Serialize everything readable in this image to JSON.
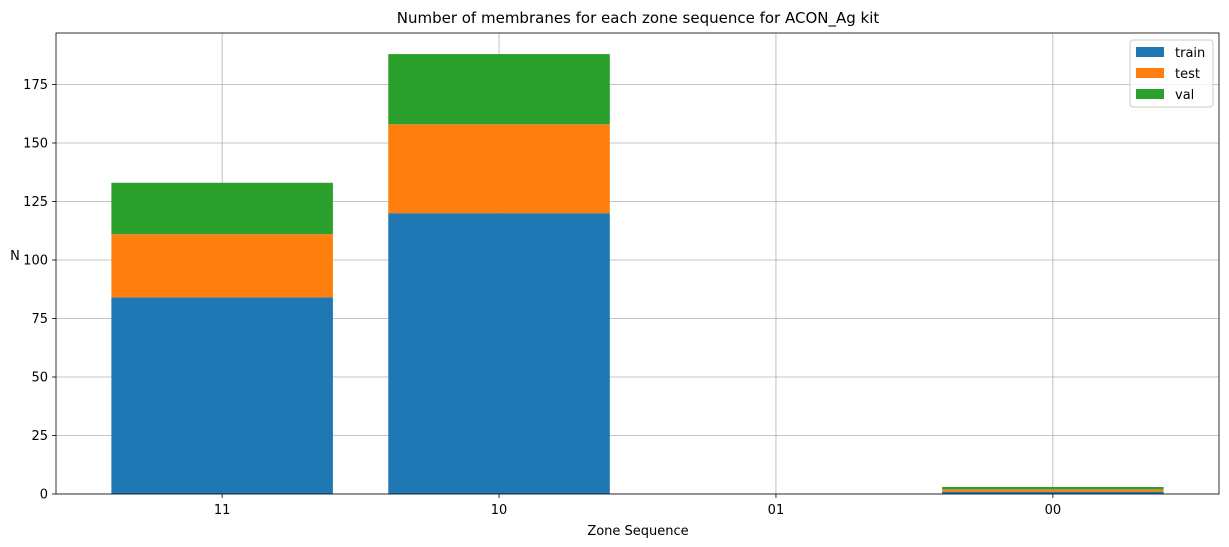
{
  "chart_data": {
    "type": "bar",
    "stacked": true,
    "title": "Number of membranes for each zone sequence for ACON_Ag kit",
    "xlabel": "Zone Sequence",
    "ylabel": "N",
    "categories": [
      "11",
      "10",
      "01",
      "00"
    ],
    "series": [
      {
        "name": "train",
        "color": "#1f77b4",
        "values": [
          84,
          120,
          0,
          1
        ]
      },
      {
        "name": "test",
        "color": "#ff7f0e",
        "values": [
          27,
          38,
          0,
          1
        ]
      },
      {
        "name": "val",
        "color": "#2ca02c",
        "values": [
          22,
          30,
          0,
          1
        ]
      }
    ],
    "ylim": [
      0,
      197
    ],
    "yticks": [
      0,
      25,
      50,
      75,
      100,
      125,
      150,
      175
    ],
    "grid": true,
    "legend": "top-right"
  }
}
